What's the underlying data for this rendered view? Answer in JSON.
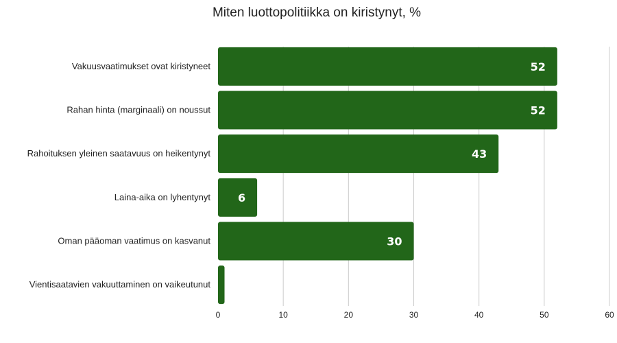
{
  "chart_data": {
    "type": "bar",
    "orientation": "horizontal",
    "title": "Miten luottopolitiikka on kiristynyt, %",
    "categories": [
      "Vakuusvaatimukset ovat kiristyneet",
      "Rahan hinta (marginaali) on noussut",
      "Rahoituksen yleinen saatavuus on heikentynyt",
      "Laina-aika on lyhentynyt",
      "Oman pääoman vaatimus on kasvanut",
      "Vientisaatavien vakuuttaminen on vaikeutunut"
    ],
    "values": [
      52,
      52,
      43,
      6,
      30,
      1
    ],
    "data_labels": [
      "52",
      "52",
      "43",
      "6",
      "30",
      ""
    ],
    "xlim": [
      0,
      60
    ],
    "ticks": [
      "0",
      "10",
      "20",
      "30",
      "40",
      "50",
      "60"
    ],
    "xlabel": "",
    "ylabel": "",
    "grid": true,
    "colors": {
      "bar": "#226619",
      "label": "#ffffff",
      "grid": "#cccccc",
      "text": "#222222"
    }
  }
}
